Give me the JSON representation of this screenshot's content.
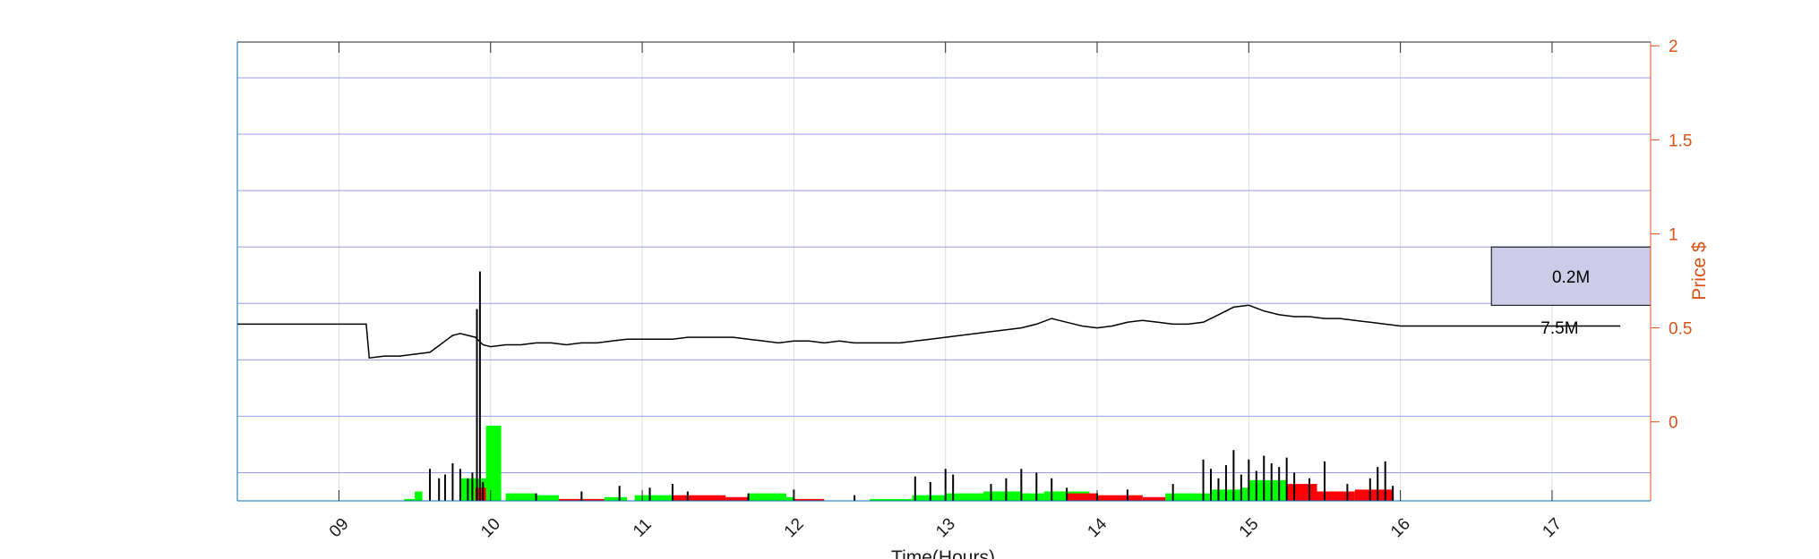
{
  "chart_data": {
    "type": "line",
    "title": "",
    "xlabel": "Time(Hours)",
    "ylabel": "Price $",
    "xlim": [
      8.33,
      17.65
    ],
    "ylim": [
      -0.42,
      2.02
    ],
    "xticks": [
      9,
      10,
      11,
      12,
      13,
      14,
      15,
      16,
      17
    ],
    "xtick_labels": [
      "09",
      "10",
      "11",
      "12",
      "13",
      "14",
      "15",
      "16",
      "17"
    ],
    "yticks": [
      0,
      0.5,
      1,
      1.5,
      2
    ],
    "ytick_labels": [
      "0",
      "0.5",
      "1",
      "1.5",
      "2"
    ],
    "y_gridlines": [
      -0.27,
      0.03,
      0.33,
      0.63,
      0.93,
      1.23,
      1.53,
      1.83
    ],
    "x_grid": true,
    "price_series": {
      "name": "",
      "x": [
        8.33,
        8.8,
        9.18,
        9.2,
        9.3,
        9.4,
        9.5,
        9.6,
        9.65,
        9.7,
        9.75,
        9.8,
        9.85,
        9.9,
        9.95,
        10.0,
        10.1,
        10.2,
        10.3,
        10.4,
        10.5,
        10.6,
        10.7,
        10.8,
        10.9,
        11.0,
        11.1,
        11.2,
        11.3,
        11.4,
        11.5,
        11.6,
        11.7,
        11.8,
        11.9,
        12.0,
        12.1,
        12.2,
        12.3,
        12.4,
        12.5,
        12.6,
        12.7,
        12.8,
        12.9,
        13.0,
        13.1,
        13.2,
        13.3,
        13.4,
        13.5,
        13.6,
        13.7,
        13.8,
        13.9,
        14.0,
        14.1,
        14.2,
        14.3,
        14.4,
        14.5,
        14.6,
        14.7,
        14.8,
        14.9,
        15.0,
        15.1,
        15.2,
        15.3,
        15.4,
        15.5,
        15.6,
        15.7,
        15.8,
        15.9,
        16.0,
        16.1,
        16.2,
        16.4,
        16.6,
        16.8,
        17.0,
        17.2,
        17.4,
        17.45
      ],
      "y": [
        0.52,
        0.52,
        0.52,
        0.34,
        0.35,
        0.35,
        0.36,
        0.37,
        0.4,
        0.43,
        0.46,
        0.47,
        0.46,
        0.45,
        0.41,
        0.4,
        0.41,
        0.41,
        0.42,
        0.42,
        0.41,
        0.42,
        0.42,
        0.43,
        0.44,
        0.44,
        0.44,
        0.44,
        0.45,
        0.45,
        0.45,
        0.45,
        0.44,
        0.43,
        0.42,
        0.43,
        0.43,
        0.42,
        0.43,
        0.42,
        0.42,
        0.42,
        0.42,
        0.43,
        0.44,
        0.45,
        0.46,
        0.47,
        0.48,
        0.49,
        0.5,
        0.52,
        0.55,
        0.53,
        0.51,
        0.5,
        0.51,
        0.53,
        0.54,
        0.53,
        0.52,
        0.52,
        0.53,
        0.57,
        0.61,
        0.62,
        0.59,
        0.57,
        0.56,
        0.56,
        0.55,
        0.55,
        0.54,
        0.53,
        0.52,
        0.51,
        0.51,
        0.51,
        0.51,
        0.51,
        0.51,
        0.51,
        0.51,
        0.51,
        0.51
      ]
    },
    "volume_spikes": {
      "x": [
        9.91,
        9.93,
        9.6,
        9.66,
        9.7,
        9.75,
        9.8,
        9.85,
        9.88,
        9.95,
        10.3,
        10.6,
        10.85,
        11.05,
        11.2,
        11.3,
        11.7,
        12.0,
        12.4,
        12.8,
        12.9,
        13.0,
        13.05,
        13.3,
        13.4,
        13.5,
        13.6,
        13.7,
        13.8,
        14.0,
        14.2,
        14.5,
        14.7,
        14.75,
        14.8,
        14.85,
        14.9,
        14.95,
        15.0,
        15.05,
        15.1,
        15.15,
        15.2,
        15.25,
        15.3,
        15.4,
        15.5,
        15.65,
        15.8,
        15.85,
        15.9,
        15.95
      ],
      "y": [
        0.6,
        0.8,
        -0.25,
        -0.3,
        -0.28,
        -0.22,
        -0.25,
        -0.3,
        -0.27,
        -0.32,
        -0.38,
        -0.37,
        -0.34,
        -0.35,
        -0.33,
        -0.37,
        -0.38,
        -0.36,
        -0.39,
        -0.29,
        -0.32,
        -0.25,
        -0.28,
        -0.33,
        -0.3,
        -0.25,
        -0.27,
        -0.3,
        -0.35,
        -0.38,
        -0.36,
        -0.33,
        -0.2,
        -0.25,
        -0.3,
        -0.23,
        -0.15,
        -0.28,
        -0.2,
        -0.26,
        -0.18,
        -0.22,
        -0.24,
        -0.19,
        -0.27,
        -0.3,
        -0.21,
        -0.33,
        -0.3,
        -0.24,
        -0.21,
        -0.34
      ]
    },
    "buy_volume_bars": {
      "color": "#00ff00",
      "x0": [
        9.43,
        9.5,
        9.8,
        9.97,
        10.1,
        10.3,
        10.75,
        10.95,
        11.7,
        11.95,
        12.5,
        12.78,
        13.0,
        13.25,
        13.5,
        13.65,
        14.45,
        14.75,
        14.95,
        15.0
      ],
      "x1": [
        9.5,
        9.55,
        9.97,
        10.07,
        10.3,
        10.45,
        10.9,
        11.2,
        11.95,
        12.0,
        12.78,
        13.0,
        13.25,
        13.5,
        13.65,
        13.95,
        14.75,
        14.95,
        15.0,
        15.25
      ],
      "y": [
        -0.41,
        -0.37,
        -0.3,
        -0.02,
        -0.38,
        -0.39,
        -0.4,
        -0.39,
        -0.38,
        -0.4,
        -0.41,
        -0.39,
        -0.38,
        -0.37,
        -0.38,
        -0.37,
        -0.38,
        -0.36,
        -0.35,
        -0.31
      ]
    },
    "sell_volume_bars": {
      "color": "#ff0000",
      "x0": [
        9.9,
        10.45,
        11.2,
        11.55,
        12.0,
        13.8,
        14.0,
        14.3,
        15.25,
        15.45,
        15.7
      ],
      "x1": [
        9.97,
        10.75,
        11.55,
        11.7,
        12.2,
        14.0,
        14.3,
        14.45,
        15.45,
        15.7,
        15.95
      ],
      "y": [
        -0.35,
        -0.41,
        -0.39,
        -0.4,
        -0.41,
        -0.38,
        -0.39,
        -0.4,
        -0.33,
        -0.37,
        -0.36
      ]
    },
    "annotation_box": {
      "x0": 16.6,
      "x1": 17.65,
      "y0": 0.62,
      "y1": 0.93,
      "fill": "#cccce9",
      "label": "0.2M"
    },
    "annotation_label_below": {
      "x": 17.05,
      "y": 0.47,
      "label": "7.5M"
    }
  }
}
